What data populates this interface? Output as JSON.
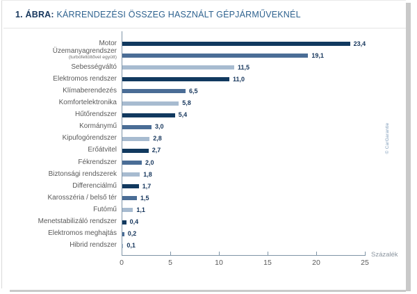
{
  "page": {
    "title_prefix": "1. ÁBRA:",
    "title_text": " KÁRRENDEZÉSI ÖSSZEG HASZNÁLT GÉPJÁRMŰVEKNÉL",
    "credit": "© CarGarantie"
  },
  "colors": {
    "dark": "#11395f",
    "medium": "#4a6d96",
    "light": "#a7bbd0",
    "title_prefix": "#16365c",
    "title_text": "#2e628f",
    "value_label": "#16365c",
    "axis": "#7e94a6",
    "category_label": "#595959"
  },
  "chart_data": {
    "type": "bar",
    "orientation": "horizontal",
    "title": "1. ÁBRA: KÁRRENDEZÉSI ÖSSZEG HASZNÁLT GÉPJÁRMŰVEKNÉL",
    "xlabel": "Százalék",
    "ylabel": "",
    "xlim": [
      0,
      25
    ],
    "xticks": [
      "0",
      "5",
      "10",
      "15",
      "20",
      "25"
    ],
    "xtick_values": [
      0,
      5,
      10,
      15,
      20,
      25
    ],
    "grid": false,
    "legend": "none",
    "color_cycle": [
      "dark",
      "medium",
      "light"
    ],
    "rows": [
      {
        "label": "Motor",
        "sub": "",
        "value": 23.4,
        "display": "23,4"
      },
      {
        "label": "Üzemanyagrendszer",
        "sub": "(turbófeltöltővel együtt)",
        "value": 19.1,
        "display": "19,1"
      },
      {
        "label": "Sebességváltó",
        "sub": "",
        "value": 11.5,
        "display": "11,5"
      },
      {
        "label": "Elektromos rendszer",
        "sub": "",
        "value": 11.0,
        "display": "11,0"
      },
      {
        "label": "Klímaberendezés",
        "sub": "",
        "value": 6.5,
        "display": "6,5"
      },
      {
        "label": "Komfortelektronika",
        "sub": "",
        "value": 5.8,
        "display": "5,8"
      },
      {
        "label": "Hűtőrendszer",
        "sub": "",
        "value": 5.4,
        "display": "5,4"
      },
      {
        "label": "Kormánymű",
        "sub": "",
        "value": 3.0,
        "display": "3,0"
      },
      {
        "label": "Kipufogórendszer",
        "sub": "",
        "value": 2.8,
        "display": "2,8"
      },
      {
        "label": "Erőátvitel",
        "sub": "",
        "value": 2.7,
        "display": "2,7"
      },
      {
        "label": "Fékrendszer",
        "sub": "",
        "value": 2.0,
        "display": "2,0"
      },
      {
        "label": "Biztonsági rendszerek",
        "sub": "",
        "value": 1.8,
        "display": "1,8"
      },
      {
        "label": "Differenciálmű",
        "sub": "",
        "value": 1.7,
        "display": "1,7"
      },
      {
        "label": "Karosszéria / belső tér",
        "sub": "",
        "value": 1.5,
        "display": "1,5"
      },
      {
        "label": "Futómű",
        "sub": "",
        "value": 1.1,
        "display": "1,1"
      },
      {
        "label": "Menetstabilizáló rendszer",
        "sub": "",
        "value": 0.4,
        "display": "0,4"
      },
      {
        "label": "Elektromos meghajtás",
        "sub": "",
        "value": 0.2,
        "display": "0,2"
      },
      {
        "label": "Hibrid rendszer",
        "sub": "",
        "value": 0.1,
        "display": "0,1"
      }
    ]
  }
}
